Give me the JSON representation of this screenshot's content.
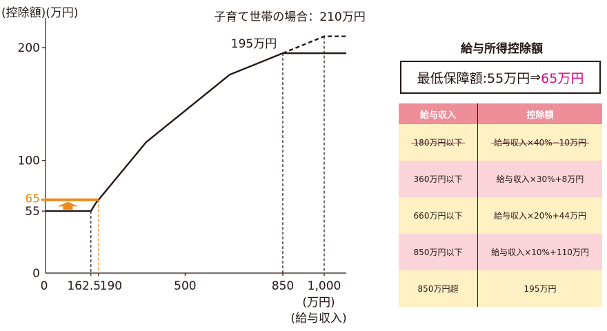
{
  "chart_data": {
    "type": "line",
    "y_axis_title": "(控除額)(万円)",
    "x_axis_unit": "(万円)",
    "x_axis_title": "(給与収入)",
    "xlim": [
      0,
      1080
    ],
    "ylim": [
      0,
      220
    ],
    "x_ticks": [
      {
        "value": 0,
        "label": "0"
      },
      {
        "value": 162.5,
        "label": "162.5"
      },
      {
        "value": 190,
        "label": "190"
      },
      {
        "value": 500,
        "label": "500"
      },
      {
        "value": 850,
        "label": "850"
      },
      {
        "value": 1000,
        "label": "1,000"
      }
    ],
    "y_ticks": [
      {
        "value": 0,
        "label": "0"
      },
      {
        "value": 55,
        "label": "55"
      },
      {
        "value": 100,
        "label": "100"
      },
      {
        "value": 200,
        "label": "200"
      }
    ],
    "highlight_tick": {
      "value": 65,
      "label": "65"
    },
    "series": [
      {
        "name": "current",
        "style": "solid",
        "color": "#231815",
        "points": [
          [
            0,
            55
          ],
          [
            162.5,
            55
          ],
          [
            180,
            62
          ],
          [
            360,
            116
          ],
          [
            660,
            176
          ],
          [
            850,
            195
          ],
          [
            1080,
            195
          ]
        ]
      },
      {
        "name": "new-minimum",
        "style": "solid",
        "color": "#ed8b1c",
        "points": [
          [
            0,
            65
          ],
          [
            190,
            65
          ]
        ]
      },
      {
        "name": "child-rearing",
        "style": "dashed",
        "color": "#231815",
        "points": [
          [
            850,
            195
          ],
          [
            1000,
            210
          ],
          [
            1080,
            210
          ]
        ]
      }
    ],
    "guides": [
      {
        "x": 162.5,
        "y_to": 55,
        "color": "#231815"
      },
      {
        "x": 190,
        "y_to": 65,
        "color": "#ed8b1c"
      },
      {
        "x": 850,
        "y_to": 195,
        "color": "#231815"
      },
      {
        "x": 1000,
        "y_to": 210,
        "color": "#231815"
      }
    ],
    "arrow": {
      "x": 80,
      "from": 55,
      "to": 65,
      "color": "#ed8b1c"
    },
    "annotations": {
      "cap_label": "195万円",
      "child_label": "子育て世帯の場合：210万円"
    }
  },
  "table": {
    "title": "給与所得控除額",
    "min_label": "最低保障額:",
    "min_old": "55万円",
    "arrow": "⇒",
    "min_new": "65万円",
    "headers": [
      "給与収入",
      "控除額"
    ],
    "rows": [
      {
        "income": "180万円以下",
        "deduction": "給与収入×40%−10万円",
        "struck": true
      },
      {
        "income": "360万円以下",
        "deduction": "給与収入×30%+8万円"
      },
      {
        "income": "660万円以下",
        "deduction": "給与収入×20%+44万円"
      },
      {
        "income": "850万円以下",
        "deduction": "給与収入×10%+110万円"
      },
      {
        "income": "850万円超",
        "deduction": "195万円"
      }
    ]
  }
}
